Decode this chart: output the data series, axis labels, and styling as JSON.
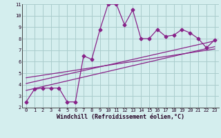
{
  "xlabel": "Windchill (Refroidissement éolien,°C)",
  "bg_color": "#d4eeee",
  "line_color": "#882288",
  "grid_color": "#aacccc",
  "axis_color": "#444444",
  "xlim": [
    -0.5,
    23.5
  ],
  "ylim": [
    2,
    11
  ],
  "xticks": [
    0,
    1,
    2,
    3,
    4,
    5,
    6,
    7,
    8,
    9,
    10,
    11,
    12,
    13,
    14,
    15,
    16,
    17,
    18,
    19,
    20,
    21,
    22,
    23
  ],
  "yticks": [
    2,
    3,
    4,
    5,
    6,
    7,
    8,
    9,
    10,
    11
  ],
  "series1_x": [
    0,
    1,
    2,
    3,
    4,
    5,
    6,
    7,
    8,
    9,
    10,
    11,
    12,
    13,
    14,
    15,
    16,
    17,
    18,
    19,
    20,
    21,
    22,
    23
  ],
  "series1_y": [
    2.5,
    3.6,
    3.7,
    3.7,
    3.7,
    2.5,
    2.5,
    6.5,
    6.2,
    8.8,
    11.0,
    11.0,
    9.2,
    10.5,
    8.0,
    8.0,
    8.8,
    8.2,
    8.3,
    8.8,
    8.5,
    8.0,
    7.2,
    7.9
  ],
  "series2_x": [
    0,
    23
  ],
  "series2_y": [
    3.5,
    7.3
  ],
  "series3_x": [
    0,
    23
  ],
  "series3_y": [
    4.1,
    7.8
  ],
  "series4_x": [
    0,
    23
  ],
  "series4_y": [
    4.6,
    7.1
  ],
  "markersize": 2.5,
  "linewidth": 0.9,
  "tick_fontsize": 5.0,
  "label_fontsize": 6.0
}
